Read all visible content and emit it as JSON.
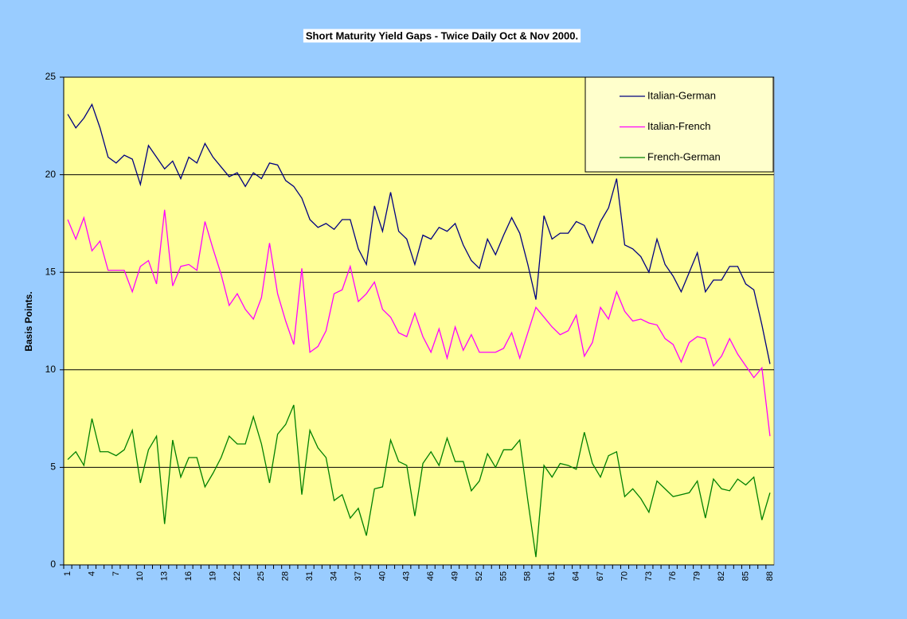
{
  "chart_data": {
    "type": "line",
    "title": "Short Maturity Yield Gaps - Twice Daily Oct & Nov 2000.",
    "y_label": "Basis Points.",
    "categories": [
      "1",
      null,
      null,
      "4",
      null,
      null,
      "7",
      null,
      null,
      "10",
      null,
      null,
      "13",
      null,
      null,
      "16",
      null,
      null,
      "19",
      null,
      null,
      "22",
      null,
      null,
      "25",
      null,
      null,
      "28",
      null,
      null,
      "31",
      null,
      null,
      "34",
      null,
      null,
      "37",
      null,
      null,
      "40",
      null,
      null,
      "43",
      null,
      null,
      "46",
      null,
      null,
      "49",
      null,
      null,
      "52",
      null,
      null,
      "55",
      null,
      null,
      "58",
      null,
      null,
      "61",
      null,
      null,
      "64",
      null,
      null,
      "67",
      null,
      null,
      "70",
      null,
      null,
      "73",
      null,
      null,
      "76",
      null,
      null,
      "79",
      null,
      null,
      "82",
      null,
      null,
      "85",
      null,
      null,
      "88"
    ],
    "series": [
      {
        "name": "Italian-German",
        "color": "#000080",
        "values": [
          23.1,
          22.4,
          22.9,
          23.6,
          22.4,
          20.9,
          20.6,
          21.0,
          20.8,
          19.5,
          21.5,
          20.9,
          20.3,
          20.7,
          19.8,
          20.9,
          20.6,
          21.6,
          20.9,
          20.4,
          19.9,
          20.1,
          19.4,
          20.1,
          19.8,
          20.6,
          20.5,
          19.7,
          19.4,
          18.8,
          17.7,
          17.3,
          17.5,
          17.2,
          17.7,
          17.7,
          16.2,
          15.4,
          18.4,
          17.1,
          19.1,
          17.1,
          16.7,
          15.4,
          16.9,
          16.7,
          17.3,
          17.1,
          17.5,
          16.4,
          15.6,
          15.2,
          16.7,
          15.9,
          16.9,
          17.8,
          17.0,
          15.4,
          13.6,
          17.9,
          16.7,
          17.0,
          17.0,
          17.6,
          17.4,
          16.5,
          17.6,
          18.3,
          19.8,
          16.4,
          16.2,
          15.8,
          15.0,
          16.7,
          15.4,
          14.8,
          14.0,
          15.0,
          16.0,
          14.0,
          14.6,
          14.6,
          15.3,
          15.3,
          14.4,
          14.1,
          12.3,
          10.3
        ]
      },
      {
        "name": "Italian-French",
        "color": "#ff00ff",
        "values": [
          17.7,
          16.7,
          17.8,
          16.1,
          16.6,
          15.1,
          15.1,
          15.1,
          14.0,
          15.3,
          15.6,
          14.4,
          18.2,
          14.3,
          15.3,
          15.4,
          15.1,
          17.6,
          16.2,
          14.9,
          13.3,
          13.9,
          13.1,
          12.6,
          13.7,
          16.5,
          13.9,
          12.5,
          11.3,
          15.2,
          10.9,
          11.2,
          12.0,
          13.9,
          14.1,
          15.3,
          13.5,
          13.9,
          14.5,
          13.1,
          12.7,
          11.9,
          11.7,
          12.9,
          11.7,
          10.9,
          12.1,
          10.6,
          12.2,
          11.0,
          11.8,
          10.9,
          10.9,
          10.9,
          11.1,
          11.9,
          10.6,
          11.9,
          13.2,
          12.7,
          12.2,
          11.8,
          12.0,
          12.8,
          10.7,
          11.4,
          13.2,
          12.6,
          14.0,
          13.0,
          12.5,
          12.6,
          12.4,
          12.3,
          11.6,
          11.3,
          10.4,
          11.4,
          11.7,
          11.6,
          10.2,
          10.7,
          11.6,
          10.8,
          10.2,
          9.6,
          10.1,
          6.6
        ]
      },
      {
        "name": "French-German",
        "color": "#008000",
        "values": [
          5.4,
          5.8,
          5.1,
          7.5,
          5.8,
          5.8,
          5.6,
          5.9,
          6.9,
          4.2,
          5.9,
          6.6,
          2.1,
          6.4,
          4.5,
          5.5,
          5.5,
          4.0,
          4.7,
          5.5,
          6.6,
          6.2,
          6.2,
          7.6,
          6.2,
          4.2,
          6.7,
          7.2,
          8.2,
          3.6,
          6.9,
          6.0,
          5.5,
          3.3,
          3.6,
          2.4,
          2.9,
          1.5,
          3.9,
          4.0,
          6.4,
          5.3,
          5.1,
          2.5,
          5.2,
          5.8,
          5.1,
          6.5,
          5.3,
          5.3,
          3.8,
          4.3,
          5.7,
          5.0,
          5.9,
          5.9,
          6.4,
          3.3,
          0.4,
          5.1,
          4.5,
          5.2,
          5.1,
          4.9,
          6.8,
          5.2,
          4.5,
          5.6,
          5.8,
          3.5,
          3.9,
          3.4,
          2.7,
          4.3,
          3.9,
          3.5,
          3.6,
          3.7,
          4.3,
          2.4,
          4.4,
          3.9,
          3.8,
          4.4,
          4.1,
          4.5,
          2.3,
          3.7
        ]
      }
    ],
    "ylim": [
      0,
      25
    ],
    "yticks": [
      0,
      5,
      10,
      15,
      20,
      25
    ],
    "grid": true,
    "legend": "upper-right",
    "plot_color": "#ffff99"
  }
}
